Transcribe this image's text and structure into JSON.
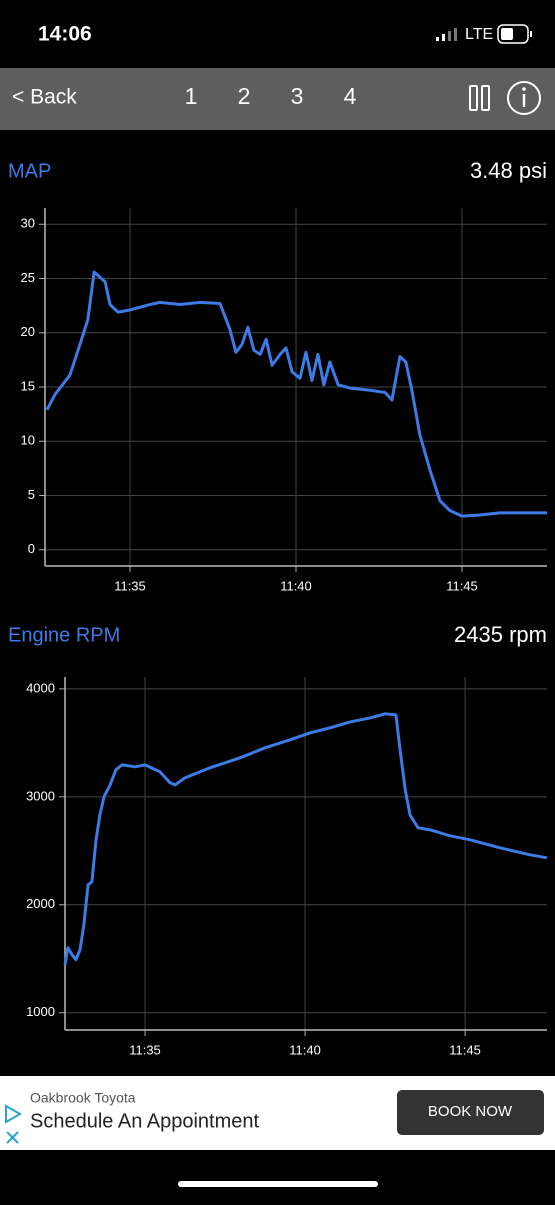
{
  "status_bar": {
    "time": "14:06",
    "network": "LTE"
  },
  "nav": {
    "back": "< Back",
    "tabs": [
      "1",
      "2",
      "3",
      "4"
    ]
  },
  "chart_data": [
    {
      "type": "line",
      "title": "MAP",
      "current_value": "3.48 psi",
      "x": [
        692.5,
        692.74,
        693.04,
        693.19,
        693.49,
        693.73,
        693.92,
        694.1,
        694.25,
        694.4,
        694.64,
        695,
        695.6,
        695.9,
        696.51,
        697.11,
        697.71,
        698.01,
        698.19,
        698.37,
        698.55,
        698.73,
        698.92,
        699.1,
        699.28,
        699.52,
        699.7,
        699.88,
        700.12,
        700.3,
        700.48,
        700.66,
        700.84,
        701.02,
        701.27,
        701.63,
        702.23,
        702.68,
        702.89,
        703.13,
        703.31,
        703.49,
        703.73,
        704.04,
        704.34,
        704.64,
        705,
        705.54,
        706.14,
        707.05,
        707.56
      ],
      "series": [
        {
          "color": "#3d7be6",
          "values": [
            12.9,
            14.3,
            15.5,
            16.1,
            18.9,
            21.2,
            25.6,
            25.1,
            24.7,
            22.6,
            21.9,
            22.1,
            22.6,
            22.8,
            22.6,
            22.8,
            22.7,
            20.3,
            18.2,
            18.9,
            20.5,
            18.4,
            18.0,
            19.4,
            17.0,
            18.0,
            18.6,
            16.4,
            15.8,
            18.2,
            15.6,
            18.0,
            15.2,
            17.3,
            15.2,
            14.9,
            14.7,
            14.5,
            13.8,
            17.8,
            17.3,
            14.7,
            10.6,
            7.3,
            4.5,
            3.6,
            3.1,
            3.2,
            3.4,
            3.4,
            3.4
          ]
        }
      ],
      "xlim": [
        692.44,
        707.56
      ],
      "ylim": [
        -1.5,
        31.5
      ],
      "xticks": [
        {
          "value": 695,
          "label": "11:35"
        },
        {
          "value": 700,
          "label": "11:40"
        },
        {
          "value": 705,
          "label": "11:45"
        }
      ],
      "yticks": [
        0,
        5,
        10,
        15,
        20,
        25,
        30
      ],
      "grid": true
    },
    {
      "type": "line",
      "title": "Engine RPM",
      "current_value": "2435 rpm",
      "x": [
        692.5,
        692.59,
        692.72,
        692.84,
        692.97,
        693.09,
        693.22,
        693.34,
        693.47,
        693.59,
        693.72,
        693.91,
        694.09,
        694.28,
        694.69,
        695,
        695.47,
        695.78,
        695.94,
        696.25,
        697.03,
        697.97,
        698.75,
        699.53,
        700.16,
        700.78,
        701.41,
        702.03,
        702.5,
        702.84,
        702.97,
        703.13,
        703.28,
        703.53,
        703.91,
        704.53,
        705.16,
        706.09,
        707.03,
        707.56
      ],
      "series": [
        {
          "color": "#3d7be6",
          "values": [
            1444,
            1602,
            1537,
            1491,
            1583,
            1815,
            2185,
            2213,
            2602,
            2833,
            3000,
            3111,
            3250,
            3296,
            3278,
            3296,
            3231,
            3130,
            3111,
            3176,
            3269,
            3361,
            3454,
            3528,
            3593,
            3639,
            3694,
            3731,
            3769,
            3759,
            3435,
            3065,
            2833,
            2713,
            2694,
            2639,
            2602,
            2528,
            2463,
            2435
          ]
        }
      ],
      "xlim": [
        692.5,
        707.56
      ],
      "ylim": [
        840,
        4110
      ],
      "xticks": [
        {
          "value": 695,
          "label": "11:35"
        },
        {
          "value": 700,
          "label": "11:40"
        },
        {
          "value": 705,
          "label": "11:45"
        }
      ],
      "yticks": [
        1000,
        2000,
        3000,
        4000
      ],
      "grid": true
    }
  ],
  "ad": {
    "advertiser": "Oakbrook Toyota",
    "headline": "Schedule An Appointment",
    "button": "BOOK NOW"
  }
}
